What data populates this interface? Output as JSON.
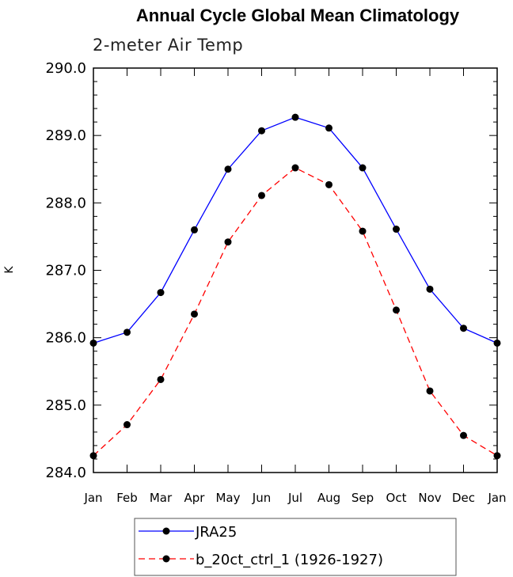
{
  "chart_data": {
    "type": "line",
    "title": "Annual Cycle Global Mean Climatology",
    "subtitle": "2-meter Air Temp",
    "xlabel": "",
    "ylabel": "K",
    "categories": [
      "Jan",
      "Feb",
      "Mar",
      "Apr",
      "May",
      "Jun",
      "Jul",
      "Aug",
      "Sep",
      "Oct",
      "Nov",
      "Dec",
      "Jan"
    ],
    "ylim": [
      284.0,
      290.0
    ],
    "yticks": [
      "284.0",
      "285.0",
      "286.0",
      "287.0",
      "288.0",
      "289.0",
      "290.0"
    ],
    "grid": false,
    "legend_position": "bottom",
    "series": [
      {
        "name": "JRA25",
        "color": "#0000ff",
        "line_style": "solid",
        "marker": "circle",
        "values": [
          285.92,
          286.08,
          286.67,
          287.6,
          288.5,
          289.07,
          289.27,
          289.11,
          288.52,
          287.61,
          286.72,
          286.14,
          285.92
        ]
      },
      {
        "name": "b_20ct_ctrl_1 (1926-1927)",
        "color": "#ff0000",
        "line_style": "dashed",
        "marker": "circle",
        "values": [
          284.25,
          284.71,
          285.38,
          286.35,
          287.42,
          288.11,
          288.52,
          288.27,
          287.58,
          286.41,
          285.21,
          284.55,
          284.25
        ]
      }
    ]
  }
}
